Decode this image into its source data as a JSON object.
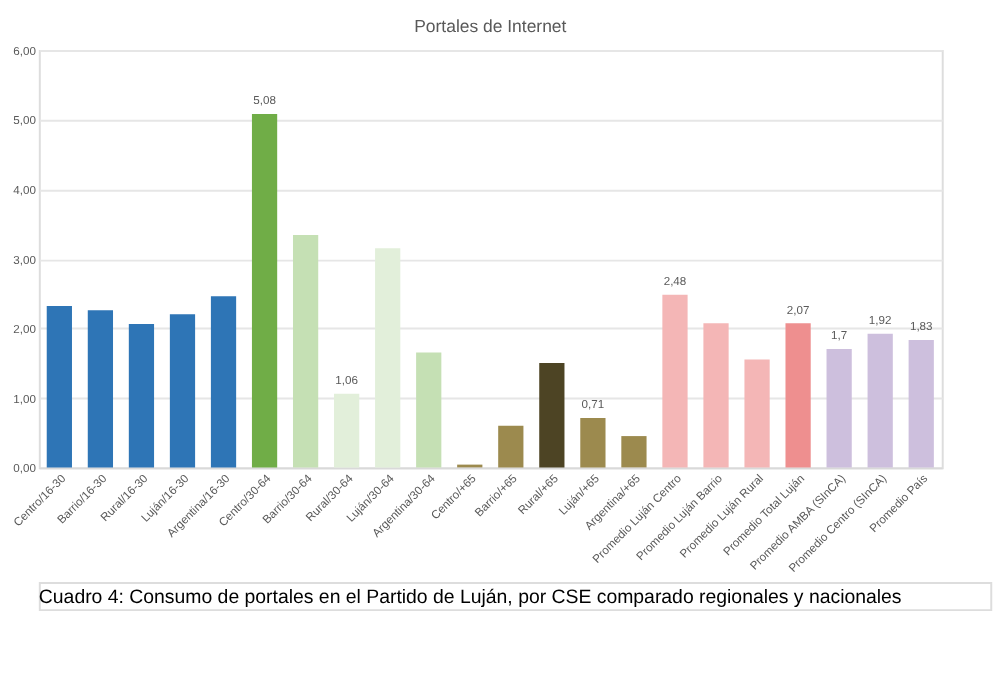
{
  "chart_data": {
    "type": "bar",
    "title": "Portales de Internet",
    "categories": [
      "Centro/16-30",
      "Barrio/16-30",
      "Rural/16-30",
      "Luján/16-30",
      "Argentina/16-30",
      "Centro/30-64",
      "Barrio/30-64",
      "Rural/30-64",
      "Luján/30-64",
      "Argentina/30-64",
      "Centro/+65",
      "Barrio/+65",
      "Rural/+65",
      "Luján/+65",
      "Argentina/+65",
      "Promedio Luján Centro",
      "Promedio Luján Barrio",
      "Promedio Luján Rural",
      "Promedio Total Luján",
      "Promedio AMBA (SInCA)",
      "Promedio Centro (SInCA)",
      "Promedio País"
    ],
    "values": [
      2.32,
      2.26,
      2.06,
      2.2,
      2.46,
      5.08,
      3.34,
      1.06,
      3.15,
      1.65,
      0.04,
      0.6,
      1.5,
      0.71,
      0.45,
      2.48,
      2.07,
      1.55,
      2.07,
      1.7,
      1.92,
      1.83
    ],
    "value_labels": [
      null,
      null,
      null,
      null,
      null,
      "5,08",
      null,
      "1,06",
      null,
      null,
      null,
      null,
      null,
      "0,71",
      null,
      "2,48",
      null,
      null,
      "2,07",
      "1,7",
      "1,92",
      "1,83"
    ],
    "colors": [
      "#2e75b6",
      "#2e75b6",
      "#2e75b6",
      "#2e75b6",
      "#2e75b6",
      "#70ad47",
      "#c5e0b4",
      "#e2efda",
      "#e2efda",
      "#c5e0b4",
      "#9c8a4e",
      "#9c8a4e",
      "#4d4424",
      "#9c8a4e",
      "#9c8a4e",
      "#f4b6b6",
      "#f4b6b6",
      "#f4b6b6",
      "#ee8f8f",
      "#cdbfdd",
      "#cdbfdd",
      "#cdbfdd"
    ],
    "ylim": [
      0,
      6
    ],
    "yticks": [
      {
        "value": 0,
        "label": "0,00"
      },
      {
        "value": 1,
        "label": "1,00"
      },
      {
        "value": 2,
        "label": "2,00"
      },
      {
        "value": 3,
        "label": "3,00"
      },
      {
        "value": 4,
        "label": "4,00"
      },
      {
        "value": 5,
        "label": "5,00"
      },
      {
        "value": 6,
        "label": "6,00"
      }
    ],
    "grid": "y",
    "annotations": [
      "Cuadro 4: Consumo de portales en el Partido de Luján, por CSE comparado regionales y nacionales"
    ]
  }
}
